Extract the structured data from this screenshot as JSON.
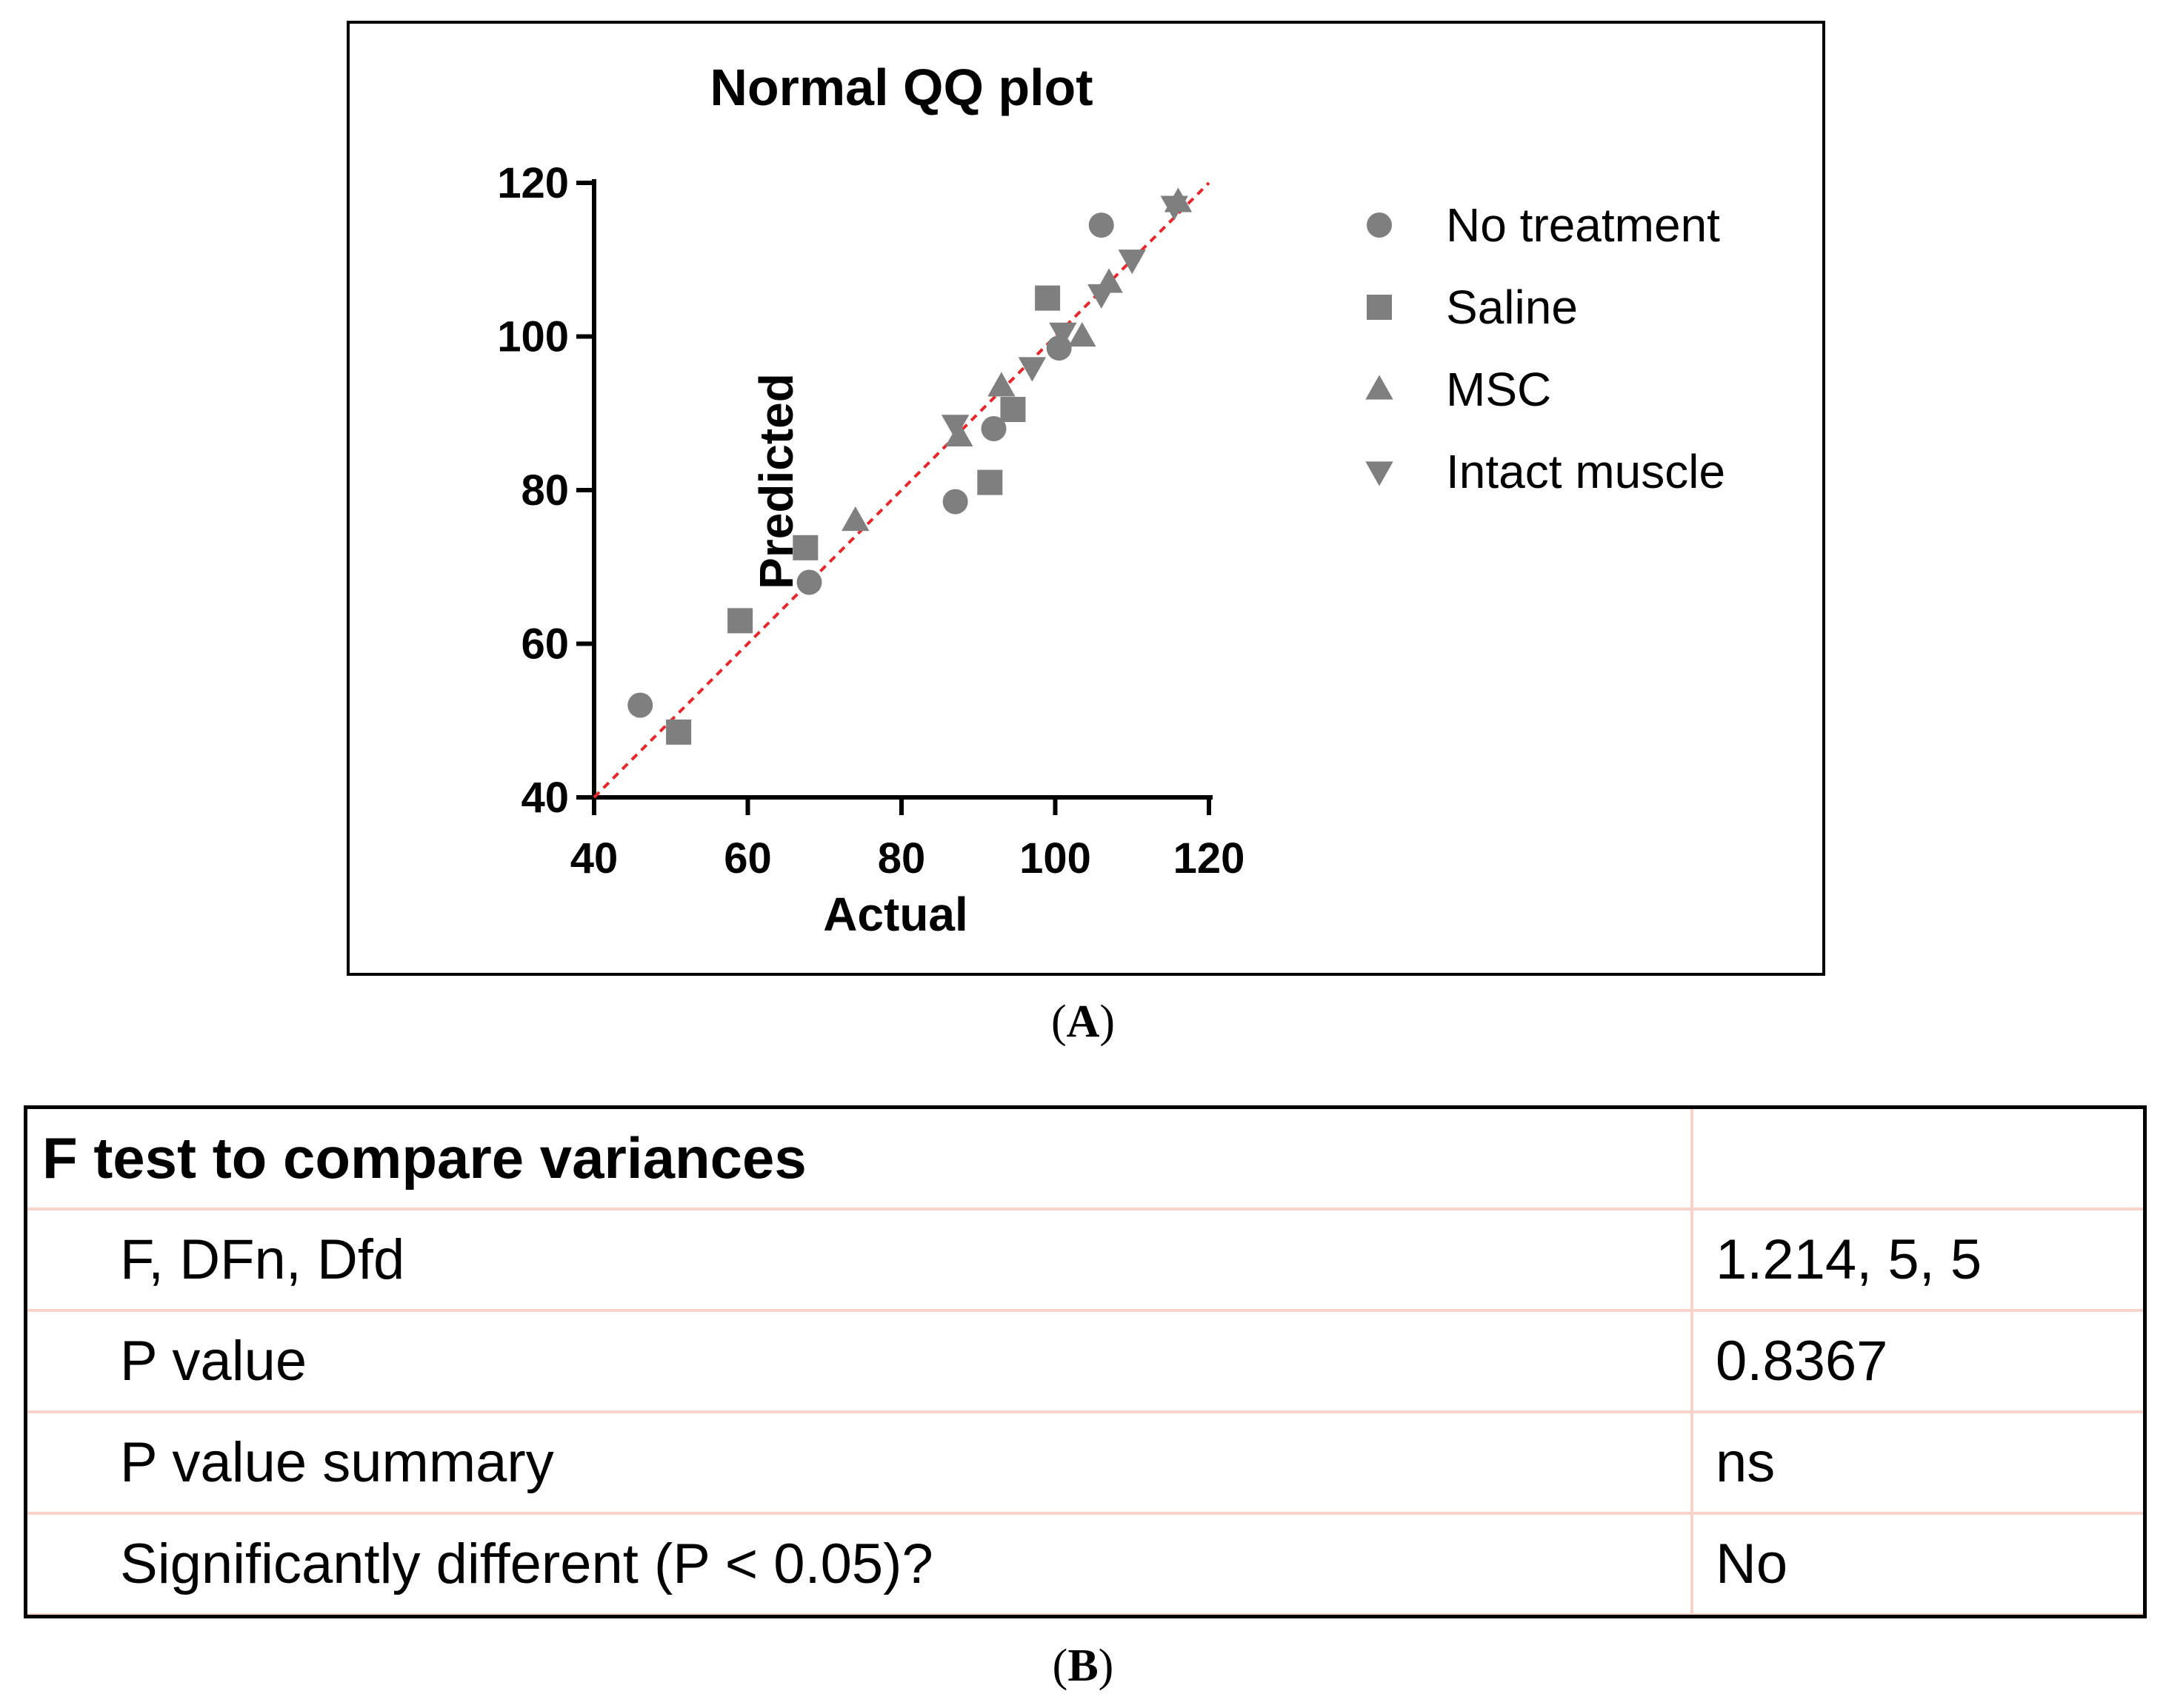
{
  "chart_data": {
    "type": "scatter",
    "title": "Normal QQ plot",
    "xlabel": "Actual",
    "ylabel": "Predicted",
    "xlim": [
      40,
      120
    ],
    "ylim": [
      40,
      120
    ],
    "xticks": [
      40,
      60,
      80,
      100,
      120
    ],
    "yticks": [
      40,
      60,
      80,
      100,
      120
    ],
    "grid": false,
    "legend_position": "right",
    "reference_line": {
      "from": [
        40,
        40
      ],
      "to": [
        120,
        120
      ],
      "style": "dashed",
      "color": "#e8262b"
    },
    "series": [
      {
        "name": "No treatment",
        "marker": "circle",
        "points": [
          [
            46,
            52
          ],
          [
            68,
            68
          ],
          [
            87,
            78.5
          ],
          [
            92,
            88
          ],
          [
            100.5,
            98.5
          ],
          [
            106,
            114.5
          ]
        ]
      },
      {
        "name": "Saline",
        "marker": "square",
        "points": [
          [
            51,
            48.5
          ],
          [
            59,
            63
          ],
          [
            67.5,
            72.5
          ],
          [
            91.5,
            81
          ],
          [
            94.5,
            90.5
          ],
          [
            99,
            105
          ]
        ]
      },
      {
        "name": "MSC",
        "marker": "triangle-up",
        "points": [
          [
            74,
            76
          ],
          [
            87.5,
            87
          ],
          [
            93,
            93.5
          ],
          [
            103.5,
            100
          ],
          [
            107,
            107
          ],
          [
            116,
            117.5
          ]
        ]
      },
      {
        "name": "Intact muscle",
        "marker": "triangle-down",
        "points": [
          [
            87,
            88.5
          ],
          [
            97,
            96
          ],
          [
            101,
            100.5
          ],
          [
            106,
            105.5
          ],
          [
            110,
            110
          ],
          [
            115.5,
            117
          ]
        ]
      }
    ],
    "marker_color": "#7f7f7f"
  },
  "panel_a_caption": "A",
  "panel_b_caption": "B",
  "f_test": {
    "header": "F test to compare variances",
    "rows": [
      {
        "label": "F, DFn, Dfd",
        "value": "1.214, 5, 5"
      },
      {
        "label": "P value",
        "value": "0.8367"
      },
      {
        "label": "P value summary",
        "value": "ns"
      },
      {
        "label": "Significantly different (P < 0.05)?",
        "value": "No"
      }
    ]
  }
}
